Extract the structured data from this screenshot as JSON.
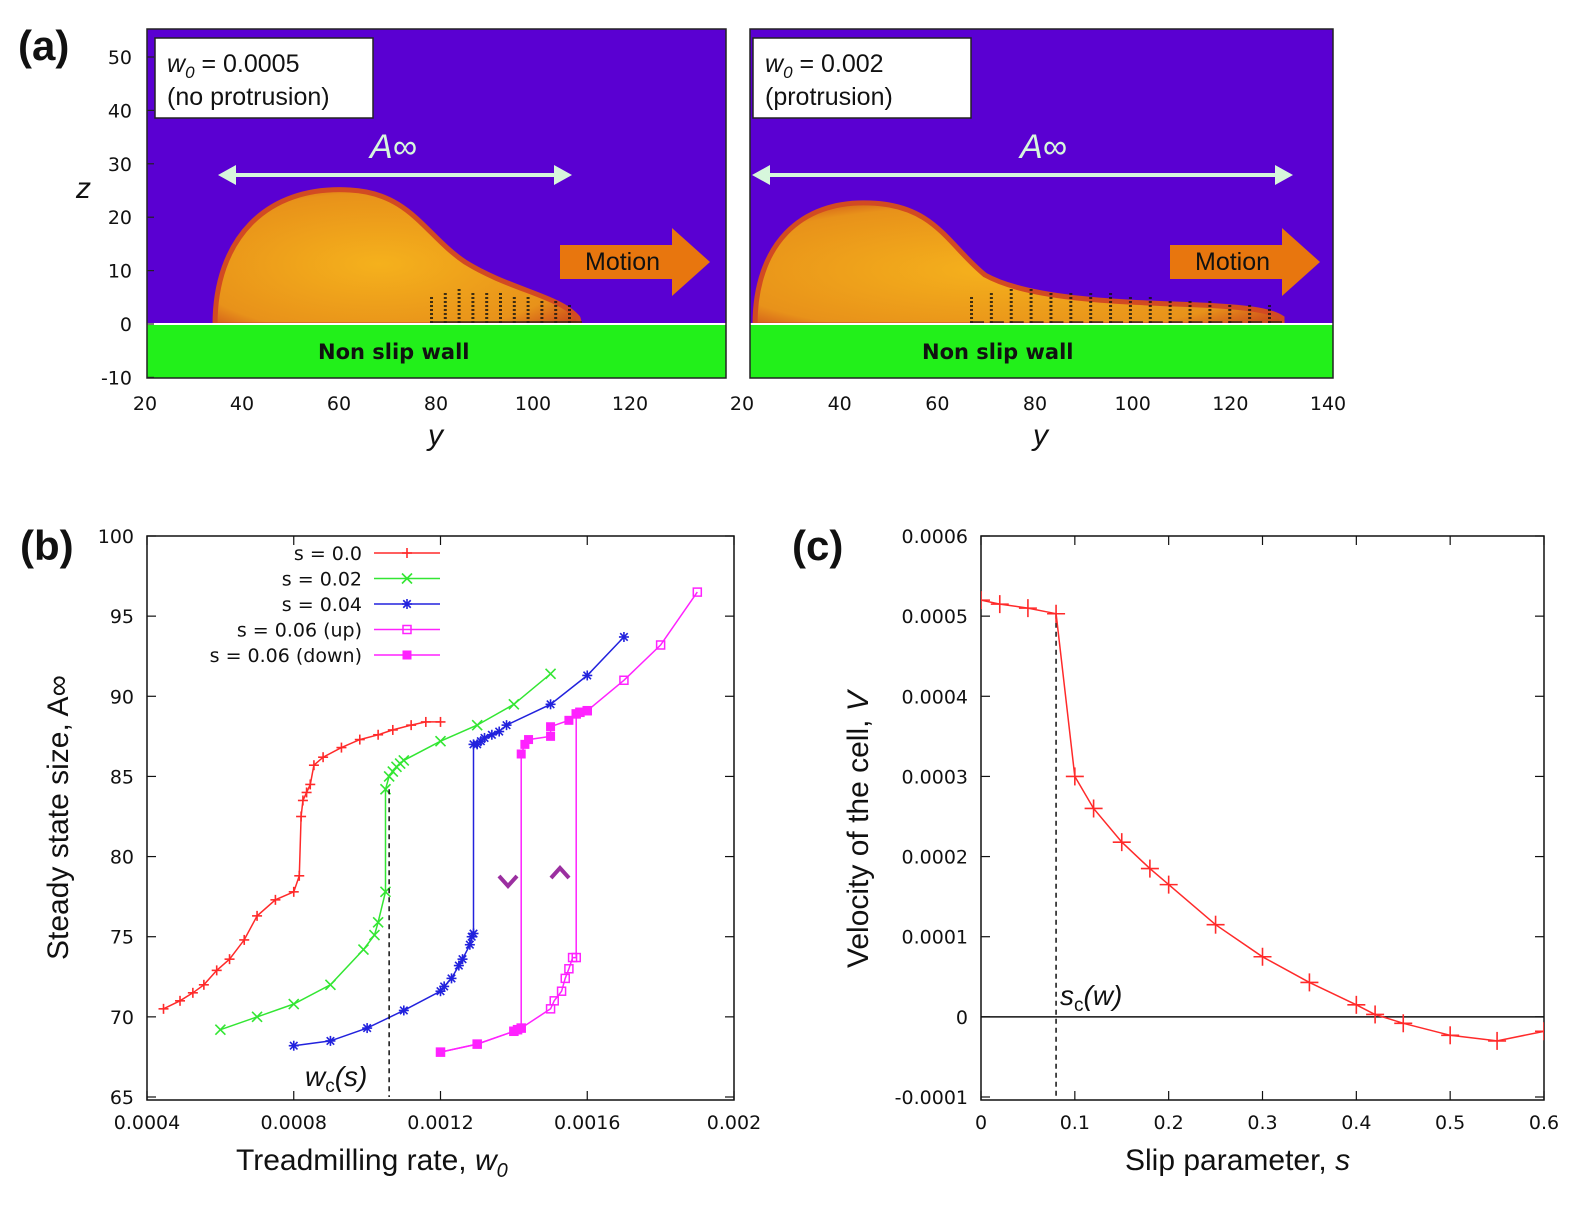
{
  "panel_labels": {
    "a": "(a)",
    "b": "(b)",
    "c": "(c)"
  },
  "colors": {
    "medium": "#5a00d2",
    "cell": "#f2a81c",
    "wall": "#22f01a",
    "arrow": "#d7f7dc",
    "motion": "#e8760e",
    "red": "#ff2a2a",
    "green": "#33e633",
    "blue": "#2222dd",
    "magenta": "#ff22ff",
    "mark": "#9b2fa0"
  },
  "panel_a": {
    "left": {
      "box_line1_var": "w",
      "box_line1_sub": "0",
      "box_line1_rest": " = 0.0005",
      "box_line2": "(no protrusion)",
      "a_inf": "A∞",
      "motion": "Motion",
      "wall": "Non slip wall"
    },
    "right": {
      "box_line1_var": "w",
      "box_line1_sub": "0",
      "box_line1_rest": " = 0.002",
      "box_line2": "(protrusion)",
      "a_inf": "A∞",
      "motion": "Motion",
      "wall": "Non slip wall"
    },
    "xlabel": "y",
    "ylabel": "z",
    "yticks": [
      50,
      40,
      30,
      20,
      10,
      0,
      -10
    ],
    "left_xticks": [
      20,
      40,
      60,
      80,
      100,
      120
    ],
    "right_xticks": [
      20,
      40,
      60,
      80,
      100,
      120,
      140
    ]
  },
  "chart_data": [
    {
      "type": "line",
      "panel": "b",
      "xlabel": "Treadmilling rate, w₀",
      "xlabel_main": "Treadmilling rate, ",
      "xlabel_var": "w",
      "xlabel_sub": "0",
      "ylabel": "Steady state size, A∞",
      "xlim": [
        0.0004,
        0.002
      ],
      "ylim": [
        65,
        100
      ],
      "xticks": [
        "0.0004",
        "0.0008",
        "0.0012",
        "0.0016",
        "0.002"
      ],
      "yticks": [
        "65",
        "70",
        "75",
        "80",
        "85",
        "90",
        "95",
        "100"
      ],
      "annotation": {
        "main": "w",
        "sub": "c",
        "rest": "(s)"
      },
      "legend_position": "top-left",
      "series": [
        {
          "name": "s = 0.0",
          "marker": "+",
          "color": "#ff2a2a",
          "x": [
            0.000445,
            0.00049,
            0.000525,
            0.000555,
            0.00059,
            0.000625,
            0.000665,
            0.0007,
            0.00075,
            0.0008,
            0.000815,
            0.00082,
            0.000825,
            0.000835,
            0.000845,
            0.000855,
            0.00088,
            0.00093,
            0.00098,
            0.00103,
            0.00107,
            0.00112,
            0.00116,
            0.0012
          ],
          "y": [
            70.5,
            71.0,
            71.5,
            72.0,
            72.9,
            73.6,
            74.8,
            76.3,
            77.3,
            77.8,
            78.8,
            82.5,
            83.5,
            84.0,
            84.5,
            85.7,
            86.2,
            86.8,
            87.3,
            87.6,
            87.9,
            88.2,
            88.4,
            88.4
          ],
          "x_points": [
            0.000445,
            0.00049,
            0.000525,
            0.000555,
            0.00059,
            0.000625,
            0.000665,
            0.0007,
            0.00075,
            0.0008,
            0.000815,
            0.00082,
            0.000825,
            0.000835,
            0.000845,
            0.000855,
            0.00088,
            0.00093,
            0.00098,
            0.00103,
            0.00107,
            0.00112,
            0.00116,
            0.0012
          ]
        },
        {
          "name": "s = 0.02",
          "marker": "x",
          "color": "#33e633",
          "x": [
            0.0006,
            0.0007,
            0.0008,
            0.0009,
            0.00099,
            0.00102,
            0.00103,
            0.00105,
            0.00105,
            0.00106,
            0.00107,
            0.00108,
            0.00109,
            0.0011,
            0.0012,
            0.0013,
            0.0014,
            0.0015
          ],
          "y": [
            69.2,
            70.0,
            70.8,
            72.0,
            74.2,
            75.1,
            75.9,
            77.8,
            84.2,
            85.0,
            85.3,
            85.6,
            85.8,
            86.0,
            87.2,
            88.2,
            89.5,
            91.4
          ]
        },
        {
          "name": "s = 0.04",
          "marker": "*",
          "color": "#2222dd",
          "x": [
            0.0008,
            0.0009,
            0.001,
            0.0011,
            0.0012,
            0.00121,
            0.00123,
            0.00125,
            0.00126,
            0.00128,
            0.001285,
            0.00129,
            0.00129,
            0.0013,
            0.00131,
            0.00132,
            0.00134,
            0.00136,
            0.00138,
            0.0015,
            0.0016,
            0.0017
          ],
          "y": [
            68.2,
            68.5,
            69.3,
            70.4,
            71.6,
            71.9,
            72.4,
            73.2,
            73.6,
            74.5,
            75.0,
            75.2,
            87.0,
            87.0,
            87.2,
            87.4,
            87.6,
            87.8,
            88.2,
            89.5,
            91.3,
            93.7
          ]
        },
        {
          "name": "s = 0.06 (up)",
          "marker": "open-square",
          "color": "#ff22ff",
          "x": [
            0.0012,
            0.0013,
            0.0014,
            0.00141,
            0.00142,
            0.0015,
            0.00151,
            0.00153,
            0.00154,
            0.00155,
            0.00156,
            0.00157,
            0.00157,
            0.00158,
            0.0016,
            0.0017,
            0.0018,
            0.0019
          ],
          "y": [
            67.8,
            68.3,
            69.1,
            69.2,
            69.3,
            70.5,
            71.0,
            71.6,
            72.4,
            73.0,
            73.7,
            73.7,
            88.9,
            89.0,
            89.1,
            91.0,
            93.2,
            96.5
          ]
        },
        {
          "name": "s = 0.06 (down)",
          "marker": "filled-square",
          "color": "#ff22ff",
          "x": [
            0.0012,
            0.0013,
            0.0014,
            0.00141,
            0.00142,
            0.00142,
            0.00143,
            0.00144,
            0.0015,
            0.0015,
            0.00155,
            0.00157,
            0.00158,
            0.0016
          ],
          "y": [
            67.8,
            68.3,
            69.1,
            69.2,
            69.3,
            86.4,
            87.0,
            87.3,
            87.5,
            88.1,
            88.5,
            88.9,
            89.0,
            89.1
          ]
        }
      ]
    },
    {
      "type": "line",
      "panel": "c",
      "xlabel": "Slip parameter, s",
      "xlabel_main": "Slip parameter, ",
      "xlabel_var": "s",
      "ylabel": "Velocity of the cell, V",
      "ylabel_main": "Velocity of the cell, ",
      "ylabel_var": "V",
      "xlim": [
        0,
        0.6
      ],
      "ylim": [
        -0.0001,
        0.0006
      ],
      "xticks": [
        "0",
        "0.1",
        "0.2",
        "0.3",
        "0.4",
        "0.5",
        "0.6"
      ],
      "yticks": [
        "-0.0001",
        "0",
        "0.0001",
        "0.0002",
        "0.0003",
        "0.0004",
        "0.0005",
        "0.0006"
      ],
      "annotation": {
        "main": "s",
        "sub": "c",
        "rest": "(w)"
      },
      "series": [
        {
          "marker": "+",
          "color": "#ff2a2a",
          "x": [
            0.0,
            0.02,
            0.05,
            0.08,
            0.1,
            0.12,
            0.15,
            0.18,
            0.2,
            0.25,
            0.3,
            0.35,
            0.4,
            0.42,
            0.45,
            0.5,
            0.55,
            0.6
          ],
          "y": [
            0.00052,
            0.000515,
            0.00051,
            0.000503,
            0.0003,
            0.00026,
            0.000218,
            0.000185,
            0.000165,
            0.000115,
            7.5e-05,
            4.3e-05,
            1.5e-05,
            3e-06,
            -8e-06,
            -2.3e-05,
            -3e-05,
            -1.8e-05
          ]
        }
      ]
    }
  ]
}
